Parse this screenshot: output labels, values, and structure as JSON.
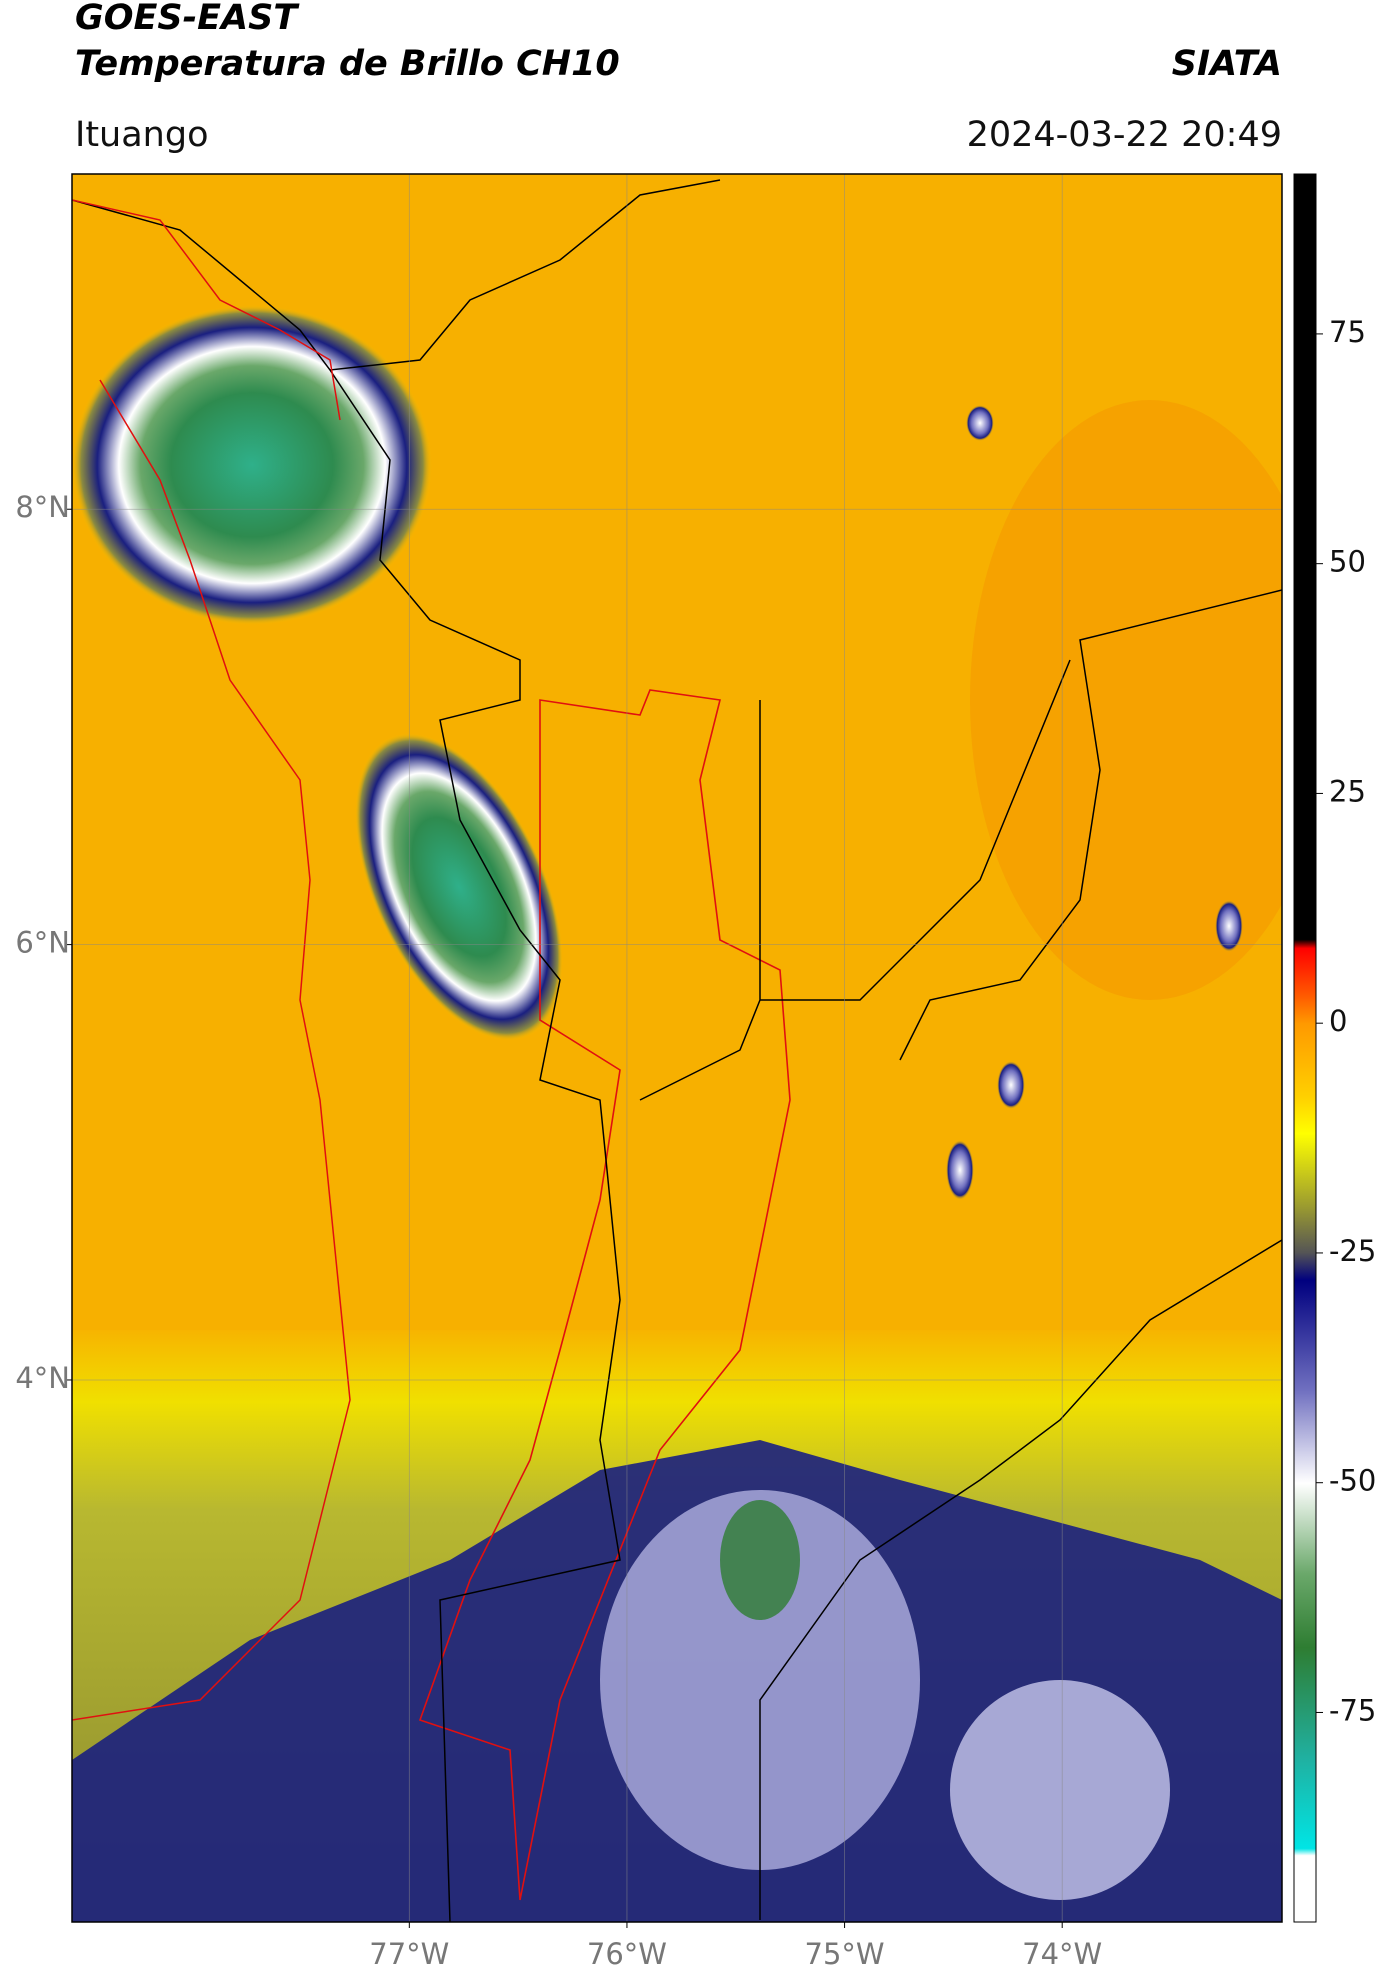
{
  "header": {
    "title": "GOES-EAST",
    "subtitle": "Temperatura de Brillo CH10",
    "brand": "SIATA",
    "location": "Ituango",
    "timestamp": "2024-03-22 20:49"
  },
  "map": {
    "xlim": [
      -78.55,
      -72.99
    ],
    "ylim": [
      1.51,
      9.54
    ],
    "xticks": [
      {
        "value": -77,
        "label": "77°W"
      },
      {
        "value": -76,
        "label": "76°W"
      },
      {
        "value": -75,
        "label": "75°W"
      },
      {
        "value": -74,
        "label": "74°W"
      }
    ],
    "yticks": [
      {
        "value": 8,
        "label": "8°N"
      },
      {
        "value": 6,
        "label": "6°N"
      },
      {
        "value": 4,
        "label": "4°N"
      }
    ],
    "grid": true
  },
  "colorbar": {
    "lim": [
      -97.8,
      92.4
    ],
    "ticks": [
      75,
      50,
      25,
      0,
      -25,
      -50,
      -75
    ]
  }
}
